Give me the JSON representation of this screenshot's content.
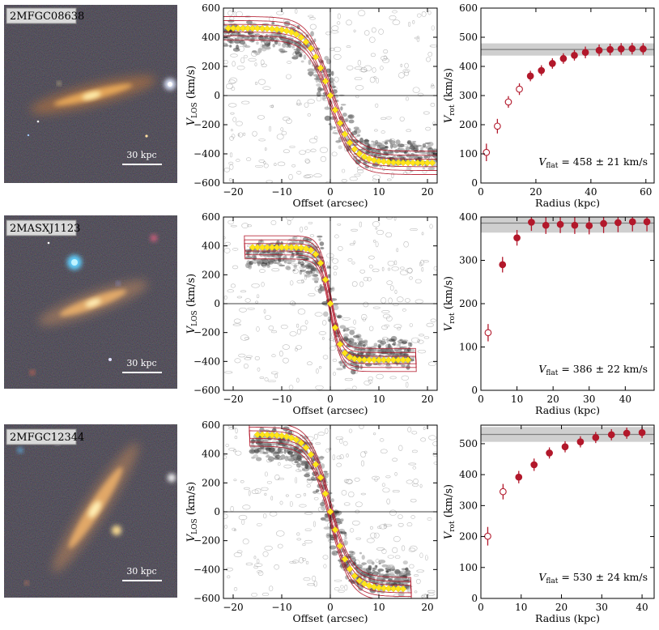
{
  "panels": [
    {
      "name": "2MFGC08638",
      "scalebar": "30 kpc",
      "pv": {
        "xlabel": "Offset (arcsec)",
        "ylabel_main": "V",
        "ylabel_sub": "LOS",
        "ylabel_unit": " (km/s)",
        "xlim": [
          -22,
          22
        ],
        "ylim": [
          -600,
          600
        ],
        "xticks": [
          -20,
          -10,
          0,
          10,
          20
        ],
        "yticks": [
          -600,
          -400,
          -200,
          0,
          200,
          400,
          600
        ],
        "curve": {
          "vmax": 462,
          "x0": 0,
          "r": 4.6
        },
        "points_x": [
          -21,
          -20,
          -19,
          -18,
          -17,
          -16,
          -15,
          -14,
          -13,
          -12,
          -11,
          -10,
          -9,
          -8,
          -7,
          -6,
          -5,
          -4,
          -3,
          -2,
          -1,
          0,
          1,
          2,
          3,
          4,
          5,
          6,
          7,
          8,
          9,
          10,
          11,
          12,
          13,
          14,
          15,
          16,
          17,
          18,
          19,
          20,
          21
        ]
      },
      "rc": {
        "xlabel": "Radius (kpc)",
        "ylabel_main": "V",
        "ylabel_sub": "rot",
        "ylabel_unit": " (km/s)",
        "xlim": [
          0,
          63
        ],
        "ylim": [
          0,
          600
        ],
        "xticks": [
          0,
          20,
          40,
          60
        ],
        "yticks": [
          0,
          100,
          200,
          300,
          400,
          500,
          600
        ],
        "vflat": 458,
        "vflat_err": 21,
        "vflat_label_main": "V",
        "vflat_label_sub": "flat",
        "vflat_label_val": " = 458 ± 21 km/s"
      },
      "chart_data": {
        "type": "scatter",
        "title": "",
        "xlabel": "Radius (kpc)",
        "ylabel": "V_rot (km/s)",
        "x": [
          2.0,
          6.0,
          10.0,
          14.0,
          18.0,
          22.0,
          26.0,
          30.0,
          34.0,
          38.0,
          43.0,
          47.0,
          51.0,
          55.0,
          59.0
        ],
        "y": [
          105,
          195,
          278,
          322,
          367,
          386,
          410,
          427,
          438,
          448,
          455,
          458,
          460,
          461,
          460
        ],
        "err": [
          30,
          25,
          20,
          20,
          18,
          18,
          18,
          18,
          18,
          20,
          20,
          20,
          20,
          20,
          20
        ],
        "open_points": 4,
        "ylim": [
          0,
          600
        ],
        "xlim": [
          0,
          63
        ]
      }
    },
    {
      "name": "2MASXJ1123",
      "scalebar": "30 kpc",
      "pv": {
        "xlabel": "Offset (arcsec)",
        "ylabel_main": "V",
        "ylabel_sub": "LOS",
        "ylabel_unit": " (km/s)",
        "xlim": [
          -22,
          22
        ],
        "ylim": [
          -600,
          600
        ],
        "xticks": [
          -20,
          -10,
          0,
          10,
          20
        ],
        "yticks": [
          -600,
          -400,
          -200,
          0,
          200,
          400,
          600
        ],
        "curve": {
          "vmax": 390,
          "x0": 0,
          "r": 2.2
        },
        "points_x": [
          -16,
          -15,
          -14,
          -13,
          -12,
          -11,
          -10,
          -9,
          -8,
          -7,
          -6,
          -5,
          -4,
          -3,
          -2,
          -1,
          0,
          1,
          2,
          3,
          4,
          5,
          6,
          7,
          8,
          9,
          10,
          11,
          12,
          13,
          14,
          15,
          16
        ]
      },
      "rc": {
        "xlabel": "Radius (kpc)",
        "ylabel_main": "V",
        "ylabel_sub": "rot",
        "ylabel_unit": " (km/s)",
        "xlim": [
          0,
          48
        ],
        "ylim": [
          0,
          400
        ],
        "xticks": [
          0,
          10,
          20,
          30,
          40
        ],
        "yticks": [
          0,
          100,
          200,
          300,
          400
        ],
        "vflat": 386,
        "vflat_err": 22,
        "vflat_label_main": "V",
        "vflat_label_sub": "flat",
        "vflat_label_val": " = 386 ± 22 km/s"
      },
      "chart_data": {
        "type": "scatter",
        "title": "",
        "xlabel": "Radius (kpc)",
        "ylabel": "V_rot (km/s)",
        "x": [
          2.0,
          6.0,
          10.0,
          14.0,
          18.0,
          22.0,
          26.0,
          30.0,
          34.0,
          38.0,
          42.0,
          46.0
        ],
        "y": [
          133,
          290,
          352,
          388,
          381,
          383,
          381,
          380,
          385,
          387,
          389,
          389
        ],
        "err": [
          20,
          18,
          18,
          20,
          20,
          20,
          20,
          20,
          22,
          22,
          22,
          22
        ],
        "open_points": 1,
        "ylim": [
          0,
          400
        ],
        "xlim": [
          0,
          48
        ]
      }
    },
    {
      "name": "2MFGC12344",
      "scalebar": "30 kpc",
      "pv": {
        "xlabel": "Offset (arcsec)",
        "ylabel_main": "V",
        "ylabel_sub": "LOS",
        "ylabel_unit": " (km/s)",
        "xlim": [
          -22,
          22
        ],
        "ylim": [
          -600,
          600
        ],
        "xticks": [
          -20,
          -10,
          0,
          10,
          20
        ],
        "yticks": [
          -600,
          -400,
          -200,
          0,
          200,
          400,
          600
        ],
        "curve": {
          "vmax": 535,
          "x0": 0,
          "r": 4.2
        },
        "points_x": [
          -15,
          -14,
          -13,
          -12,
          -11,
          -10,
          -9,
          -8,
          -7,
          -6,
          -5,
          -4,
          -3,
          -2,
          -1,
          0,
          1,
          2,
          3,
          4,
          5,
          6,
          7,
          8,
          9,
          10,
          11,
          12,
          13,
          14,
          15
        ]
      },
      "rc": {
        "xlabel": "Radius (kpc)",
        "ylabel_main": "V",
        "ylabel_sub": "rot",
        "ylabel_unit": " (km/s)",
        "xlim": [
          0,
          43
        ],
        "ylim": [
          0,
          560
        ],
        "xticks": [
          0,
          10,
          20,
          30,
          40
        ],
        "yticks": [
          0,
          100,
          200,
          300,
          400,
          500
        ],
        "vflat": 530,
        "vflat_err": 24,
        "vflat_label_main": "V",
        "vflat_label_sub": "flat",
        "vflat_label_val": " = 530 ± 24 km/s"
      },
      "chart_data": {
        "type": "scatter",
        "title": "",
        "xlabel": "Radius (kpc)",
        "ylabel": "V_rot (km/s)",
        "x": [
          1.7,
          5.5,
          9.4,
          13.2,
          17.0,
          20.9,
          24.7,
          28.5,
          32.4,
          36.2,
          40.0
        ],
        "y": [
          201,
          345,
          392,
          432,
          470,
          490,
          506,
          520,
          529,
          534,
          536
        ],
        "err": [
          30,
          25,
          20,
          20,
          18,
          18,
          18,
          18,
          18,
          18,
          18
        ],
        "open_points": 2,
        "ylim": [
          0,
          560
        ],
        "xlim": [
          0,
          43
        ]
      }
    }
  ],
  "colors": {
    "red": "#b2182b",
    "contour": "#b2182b",
    "yellow": "#ffe51a",
    "band": "#cfcfcf",
    "vline": "#7f7f7f"
  }
}
